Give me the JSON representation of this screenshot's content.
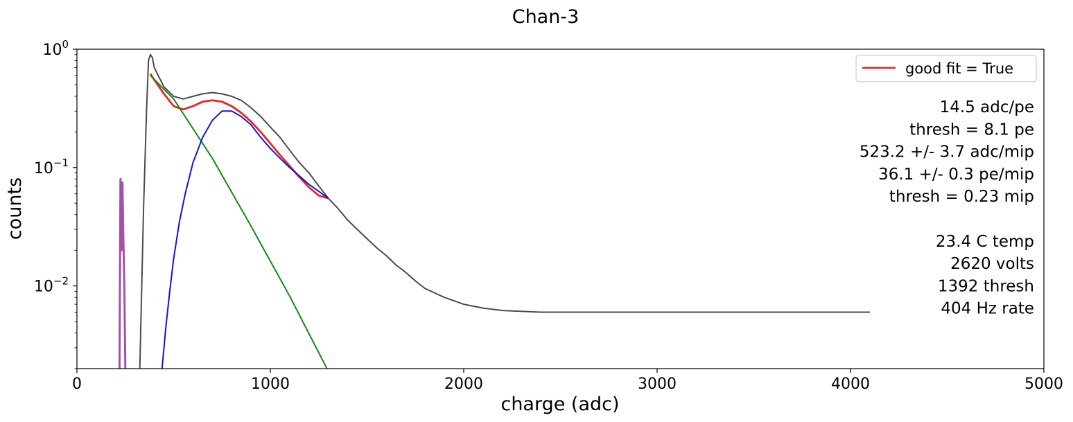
{
  "chart_data": {
    "type": "line",
    "title": "Chan-3",
    "xlabel": "charge (adc)",
    "ylabel": "counts",
    "x_range": [
      0,
      5000
    ],
    "y_range": [
      0.002,
      1.0
    ],
    "y_scale": "log",
    "x_ticks": [
      {
        "value": 0,
        "label": "0"
      },
      {
        "value": 1000,
        "label": "1000"
      },
      {
        "value": 2000,
        "label": "2000"
      },
      {
        "value": 3000,
        "label": "3000"
      },
      {
        "value": 4000,
        "label": "4000"
      },
      {
        "value": 5000,
        "label": "5000"
      }
    ],
    "y_ticks": [
      {
        "value": 1,
        "base": "10",
        "exp": "0"
      },
      {
        "value": 0.1,
        "base": "10",
        "exp": "−1"
      },
      {
        "value": 0.01,
        "base": "10",
        "exp": "−2"
      }
    ],
    "grid": false,
    "legend": {
      "placement": "top-right",
      "entries": [
        {
          "label": "good fit = True",
          "color": "#ee2222"
        }
      ]
    },
    "annotations": [
      "14.5  adc/pe",
      "thresh = 8.1 pe",
      "523.2 +/- 3.7  adc/mip",
      "36.1 +/- 0.3  pe/mip",
      "thresh = 0.23 mip",
      "",
      "23.4 C temp",
      "2620 volts",
      "1392 thresh",
      "404 Hz rate"
    ],
    "colors": {
      "histogram": "#4a4a4a",
      "pedestal": "#a550a8",
      "fit_total": "#ee2222",
      "fit_exponential": "#118811",
      "fit_gaussian": "#1111dd"
    },
    "series": [
      {
        "role": "histogram",
        "x": [
          325,
          345,
          360,
          370,
          380,
          390,
          400,
          420,
          450,
          500,
          550,
          600,
          650,
          700,
          750,
          800,
          850,
          900,
          950,
          1000,
          1050,
          1100,
          1150,
          1200,
          1250,
          1300,
          1350,
          1400,
          1450,
          1500,
          1550,
          1600,
          1650,
          1700,
          1750,
          1800,
          1900,
          2000,
          2100,
          2200,
          2400,
          2600,
          2800,
          3000,
          3200,
          3400,
          3600,
          3800,
          4000,
          4100
        ],
        "values": [
          0.002,
          0.05,
          0.3,
          0.8,
          0.9,
          0.85,
          0.7,
          0.6,
          0.48,
          0.4,
          0.38,
          0.4,
          0.42,
          0.43,
          0.42,
          0.4,
          0.37,
          0.32,
          0.27,
          0.22,
          0.18,
          0.14,
          0.11,
          0.09,
          0.07,
          0.055,
          0.045,
          0.036,
          0.03,
          0.025,
          0.021,
          0.018,
          0.015,
          0.013,
          0.011,
          0.0095,
          0.008,
          0.007,
          0.0065,
          0.0062,
          0.006,
          0.006,
          0.006,
          0.006,
          0.006,
          0.006,
          0.006,
          0.006,
          0.006,
          0.006
        ]
      },
      {
        "role": "pedestal",
        "x": [
          220,
          225,
          230,
          235,
          240,
          245,
          250
        ],
        "values": [
          0.002,
          0.08,
          0.02,
          0.075,
          0.025,
          0.01,
          0.002
        ]
      },
      {
        "role": "fit_total",
        "x": [
          380,
          400,
          450,
          500,
          550,
          600,
          650,
          700,
          750,
          800,
          850,
          900,
          950,
          1000,
          1050,
          1100,
          1150,
          1200,
          1250,
          1300
        ],
        "values": [
          0.62,
          0.55,
          0.42,
          0.33,
          0.31,
          0.33,
          0.36,
          0.37,
          0.36,
          0.33,
          0.29,
          0.245,
          0.2,
          0.16,
          0.128,
          0.103,
          0.083,
          0.068,
          0.058,
          0.055
        ]
      },
      {
        "role": "fit_exponential",
        "x": [
          380,
          500,
          700,
          900,
          1100,
          1300
        ],
        "values": [
          0.6,
          0.38,
          0.12,
          0.032,
          0.0082,
          0.0019
        ]
      },
      {
        "role": "fit_gaussian",
        "x": [
          440,
          460,
          480,
          500,
          530,
          560,
          600,
          650,
          700,
          750,
          800,
          850,
          900,
          950,
          1000,
          1050,
          1100,
          1150,
          1200,
          1250,
          1300
        ],
        "values": [
          0.002,
          0.0045,
          0.009,
          0.017,
          0.035,
          0.06,
          0.11,
          0.18,
          0.25,
          0.3,
          0.3,
          0.27,
          0.23,
          0.18,
          0.145,
          0.12,
          0.1,
          0.085,
          0.072,
          0.063,
          0.055
        ]
      }
    ]
  }
}
